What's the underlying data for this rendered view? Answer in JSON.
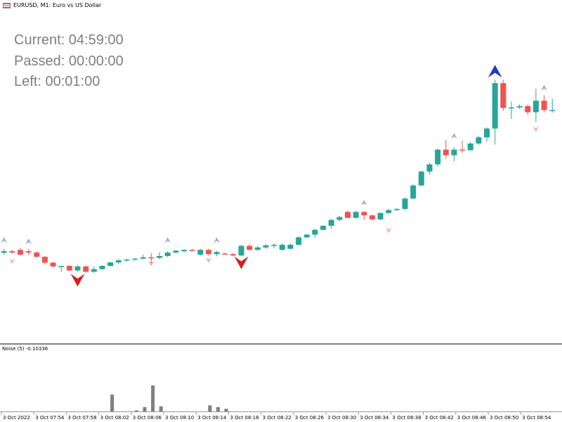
{
  "header": {
    "symbol_title": "EURUSD, M1:  Euro vs US Dollar",
    "flag_icon": "us-eu-flag-icon"
  },
  "timer": {
    "current": "Current: 04:59:00",
    "passed": "Passed: 00:00:00",
    "left": "Left: 00:01:00"
  },
  "colors": {
    "bull": "#26a69a",
    "bear": "#ef5350",
    "noise_bar": "#808080",
    "buy_arrow": "#1f3fbf",
    "sell_arrow": "#d91e1e"
  },
  "chart_data": [
    {
      "type": "candlestick",
      "title": "EURUSD, M1:  Euro vs US Dollar",
      "x_tick_labels": [
        "3 Oct 2022",
        "3 Oct 07:54",
        "3 Oct 07:58",
        "3 Oct 08:02",
        "3 Oct 08:06",
        "3 Oct 08:10",
        "3 Oct 08:14",
        "3 Oct 08:18",
        "3 Oct 08:22",
        "3 Oct 08:26",
        "3 Oct 08:30",
        "3 Oct 08:34",
        "3 Oct 08:38",
        "3 Oct 08:42",
        "3 Oct 08:46",
        "3 Oct 08:50",
        "3 Oct 08:54"
      ],
      "ylim": [
        0,
        100
      ],
      "candles": [
        {
          "o": 20.7,
          "h": 22.7,
          "l": 19.5,
          "c": 21.2
        },
        {
          "o": 21.2,
          "h": 22.7,
          "l": 20.5,
          "c": 21.8
        },
        {
          "o": 21.8,
          "h": 22.3,
          "l": 20.9,
          "c": 21.3
        },
        {
          "o": 22.3,
          "h": 23.0,
          "l": 20.1,
          "c": 20.5
        },
        {
          "o": 21.8,
          "h": 22.7,
          "l": 20.4,
          "c": 21.3
        },
        {
          "o": 21.3,
          "h": 21.8,
          "l": 19.5,
          "c": 19.7
        },
        {
          "o": 19.7,
          "h": 20.0,
          "l": 17.0,
          "c": 17.5
        },
        {
          "o": 17.5,
          "h": 17.8,
          "l": 15.7,
          "c": 16.1
        },
        {
          "o": 16.1,
          "h": 16.4,
          "l": 14.1,
          "c": 16.3
        },
        {
          "o": 16.3,
          "h": 16.6,
          "l": 14.3,
          "c": 14.6
        },
        {
          "o": 14.6,
          "h": 16.6,
          "l": 14.1,
          "c": 16.1
        },
        {
          "o": 16.1,
          "h": 16.4,
          "l": 13.7,
          "c": 14.1
        },
        {
          "o": 14.1,
          "h": 16.1,
          "l": 13.7,
          "c": 15.1
        },
        {
          "o": 15.1,
          "h": 16.6,
          "l": 14.8,
          "c": 16.3
        },
        {
          "o": 16.3,
          "h": 17.8,
          "l": 16.1,
          "c": 17.6
        },
        {
          "o": 17.6,
          "h": 18.9,
          "l": 17.1,
          "c": 18.4
        },
        {
          "o": 18.4,
          "h": 18.9,
          "l": 17.8,
          "c": 18.7
        },
        {
          "o": 18.7,
          "h": 19.3,
          "l": 18.2,
          "c": 19.0
        },
        {
          "o": 19.0,
          "h": 20.5,
          "l": 18.7,
          "c": 19.5
        },
        {
          "o": 19.5,
          "h": 21.0,
          "l": 17.4,
          "c": 19.3
        },
        {
          "o": 19.3,
          "h": 21.3,
          "l": 18.8,
          "c": 20.0
        },
        {
          "o": 20.0,
          "h": 21.8,
          "l": 19.5,
          "c": 21.3
        },
        {
          "o": 21.3,
          "h": 22.3,
          "l": 21.0,
          "c": 22.0
        },
        {
          "o": 21.8,
          "h": 22.5,
          "l": 21.3,
          "c": 22.3
        },
        {
          "o": 22.3,
          "h": 22.7,
          "l": 21.8,
          "c": 22.0
        },
        {
          "o": 20.5,
          "h": 22.7,
          "l": 20.1,
          "c": 22.3
        },
        {
          "o": 22.3,
          "h": 22.7,
          "l": 20.2,
          "c": 20.7
        },
        {
          "o": 20.7,
          "h": 21.9,
          "l": 19.9,
          "c": 21.5
        },
        {
          "o": 20.9,
          "h": 21.3,
          "l": 20.5,
          "c": 20.7
        },
        {
          "o": 20.7,
          "h": 21.2,
          "l": 19.9,
          "c": 20.2
        },
        {
          "o": 20.2,
          "h": 24.2,
          "l": 19.9,
          "c": 23.8
        },
        {
          "o": 23.8,
          "h": 24.5,
          "l": 22.0,
          "c": 22.3
        },
        {
          "o": 22.3,
          "h": 23.7,
          "l": 22.0,
          "c": 23.2
        },
        {
          "o": 23.2,
          "h": 24.4,
          "l": 22.7,
          "c": 24.0
        },
        {
          "o": 24.0,
          "h": 24.6,
          "l": 22.9,
          "c": 24.2
        },
        {
          "o": 22.3,
          "h": 24.7,
          "l": 22.0,
          "c": 24.2
        },
        {
          "o": 22.7,
          "h": 24.7,
          "l": 22.5,
          "c": 24.2
        },
        {
          "o": 24.2,
          "h": 27.4,
          "l": 24.0,
          "c": 27.0
        },
        {
          "o": 27.0,
          "h": 28.3,
          "l": 26.7,
          "c": 28.0
        },
        {
          "o": 28.0,
          "h": 30.2,
          "l": 26.9,
          "c": 29.8
        },
        {
          "o": 29.8,
          "h": 31.5,
          "l": 29.5,
          "c": 31.3
        },
        {
          "o": 31.3,
          "h": 33.9,
          "l": 30.3,
          "c": 33.5
        },
        {
          "o": 33.5,
          "h": 35.0,
          "l": 33.0,
          "c": 34.6
        },
        {
          "o": 36.5,
          "h": 37.0,
          "l": 34.0,
          "c": 34.3
        },
        {
          "o": 34.3,
          "h": 36.9,
          "l": 34.0,
          "c": 36.5
        },
        {
          "o": 36.5,
          "h": 36.9,
          "l": 33.5,
          "c": 35.2
        },
        {
          "o": 35.2,
          "h": 35.6,
          "l": 33.3,
          "c": 33.7
        },
        {
          "o": 33.7,
          "h": 36.3,
          "l": 33.5,
          "c": 36.1
        },
        {
          "o": 36.1,
          "h": 37.6,
          "l": 35.8,
          "c": 37.2
        },
        {
          "o": 37.2,
          "h": 38.0,
          "l": 36.8,
          "c": 37.6
        },
        {
          "o": 37.6,
          "h": 41.9,
          "l": 37.3,
          "c": 41.5
        },
        {
          "o": 41.5,
          "h": 46.8,
          "l": 41.2,
          "c": 46.4
        },
        {
          "o": 46.4,
          "h": 52.0,
          "l": 46.1,
          "c": 51.6
        },
        {
          "o": 51.6,
          "h": 54.8,
          "l": 50.5,
          "c": 54.3
        },
        {
          "o": 54.3,
          "h": 60.2,
          "l": 53.4,
          "c": 59.8
        },
        {
          "o": 59.8,
          "h": 63.4,
          "l": 56.4,
          "c": 57.7
        },
        {
          "o": 57.7,
          "h": 60.7,
          "l": 55.5,
          "c": 59.8
        },
        {
          "o": 59.8,
          "h": 63.2,
          "l": 58.7,
          "c": 59.6
        },
        {
          "o": 59.6,
          "h": 62.6,
          "l": 59.3,
          "c": 62.1
        },
        {
          "o": 62.1,
          "h": 65.0,
          "l": 61.5,
          "c": 64.4
        },
        {
          "o": 64.4,
          "h": 68.1,
          "l": 62.8,
          "c": 67.7
        },
        {
          "o": 67.7,
          "h": 86.0,
          "l": 61.7,
          "c": 84.7
        },
        {
          "o": 84.7,
          "h": 86.0,
          "l": 74.3,
          "c": 75.4
        },
        {
          "o": 75.6,
          "h": 77.8,
          "l": 71.3,
          "c": 75.6
        },
        {
          "o": 75.6,
          "h": 76.7,
          "l": 75.0,
          "c": 76.1
        },
        {
          "o": 76.1,
          "h": 76.6,
          "l": 72.8,
          "c": 73.8
        },
        {
          "o": 73.8,
          "h": 82.6,
          "l": 70.1,
          "c": 78.1
        },
        {
          "o": 78.1,
          "h": 80.1,
          "l": 73.7,
          "c": 74.6
        },
        {
          "o": 74.6,
          "h": 78.9,
          "l": 73.6,
          "c": 74.6
        }
      ],
      "buy_arrows": [
        {
          "i": 1,
          "y": 27.0,
          "big": false
        },
        {
          "i": 4,
          "y": 26.5,
          "big": false
        },
        {
          "i": 21,
          "y": 27.0,
          "big": false
        },
        {
          "i": 27,
          "y": 27.0,
          "big": false
        },
        {
          "i": 45,
          "y": 41.0,
          "big": false
        },
        {
          "i": 56,
          "y": 66.0,
          "big": false
        },
        {
          "i": 61,
          "y": 91.5,
          "big": true
        },
        {
          "i": 67,
          "y": 84.0,
          "big": false
        }
      ],
      "sell_arrows": [
        {
          "i": 2,
          "y": 17.0,
          "big": false
        },
        {
          "i": 10,
          "y": 8.6,
          "big": true
        },
        {
          "i": 19,
          "y": 16.2,
          "big": false
        },
        {
          "i": 26,
          "y": 17.4,
          "big": false
        },
        {
          "i": 30,
          "y": 15.1,
          "big": true
        },
        {
          "i": 48,
          "y": 28.6,
          "big": false
        },
        {
          "i": 66,
          "y": 66.4,
          "big": false
        }
      ]
    },
    {
      "type": "bar",
      "title": "Noise (5) -0.10336",
      "ylim": [
        0,
        1
      ],
      "values": [
        {
          "i": 14,
          "v": 0.5
        },
        {
          "i": 17,
          "v": 0.03
        },
        {
          "i": 18,
          "v": 0.13
        },
        {
          "i": 19,
          "v": 0.77
        },
        {
          "i": 20,
          "v": 0.15
        },
        {
          "i": 26,
          "v": 0.18
        },
        {
          "i": 27,
          "v": 0.13
        },
        {
          "i": 28,
          "v": 0.08
        }
      ]
    }
  ]
}
